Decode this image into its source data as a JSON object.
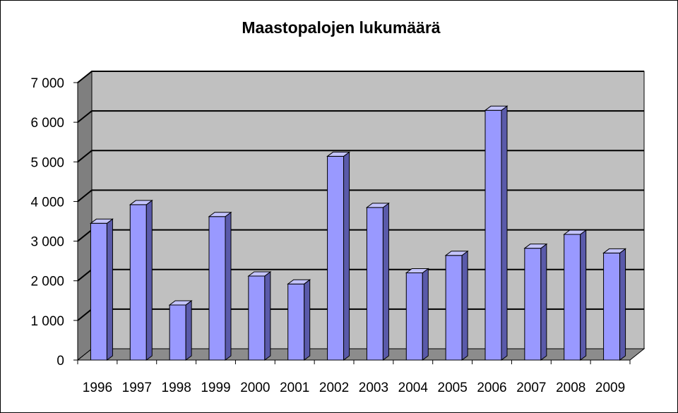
{
  "chart_data": {
    "type": "bar",
    "title": "Maastopalojen lukumäärä",
    "categories": [
      "1996",
      "1997",
      "1998",
      "1999",
      "2000",
      "2001",
      "2002",
      "2003",
      "2004",
      "2005",
      "2006",
      "2007",
      "2008",
      "2009"
    ],
    "values": [
      3450,
      3920,
      1390,
      3620,
      2120,
      1920,
      5140,
      3850,
      2200,
      2640,
      6300,
      2820,
      3170,
      2700
    ],
    "ylim": [
      0,
      7000
    ],
    "yticks": [
      0,
      1000,
      2000,
      3000,
      4000,
      5000,
      6000,
      7000
    ],
    "ytick_labels": [
      "0",
      "1 000",
      "2 000",
      "3 000",
      "4 000",
      "5 000",
      "6 000",
      "7 000"
    ],
    "xlabel": "",
    "ylabel": "",
    "grid": true,
    "legend": "none",
    "colors": {
      "bar_front": "#9999ff",
      "bar_side": "#5a5aaa",
      "bar_top": "#c4c4ff",
      "back_wall": "#c0c0c0",
      "side_wall": "#7f7f7f",
      "floor": "#8c8c8c",
      "gridline": "#000000"
    }
  }
}
